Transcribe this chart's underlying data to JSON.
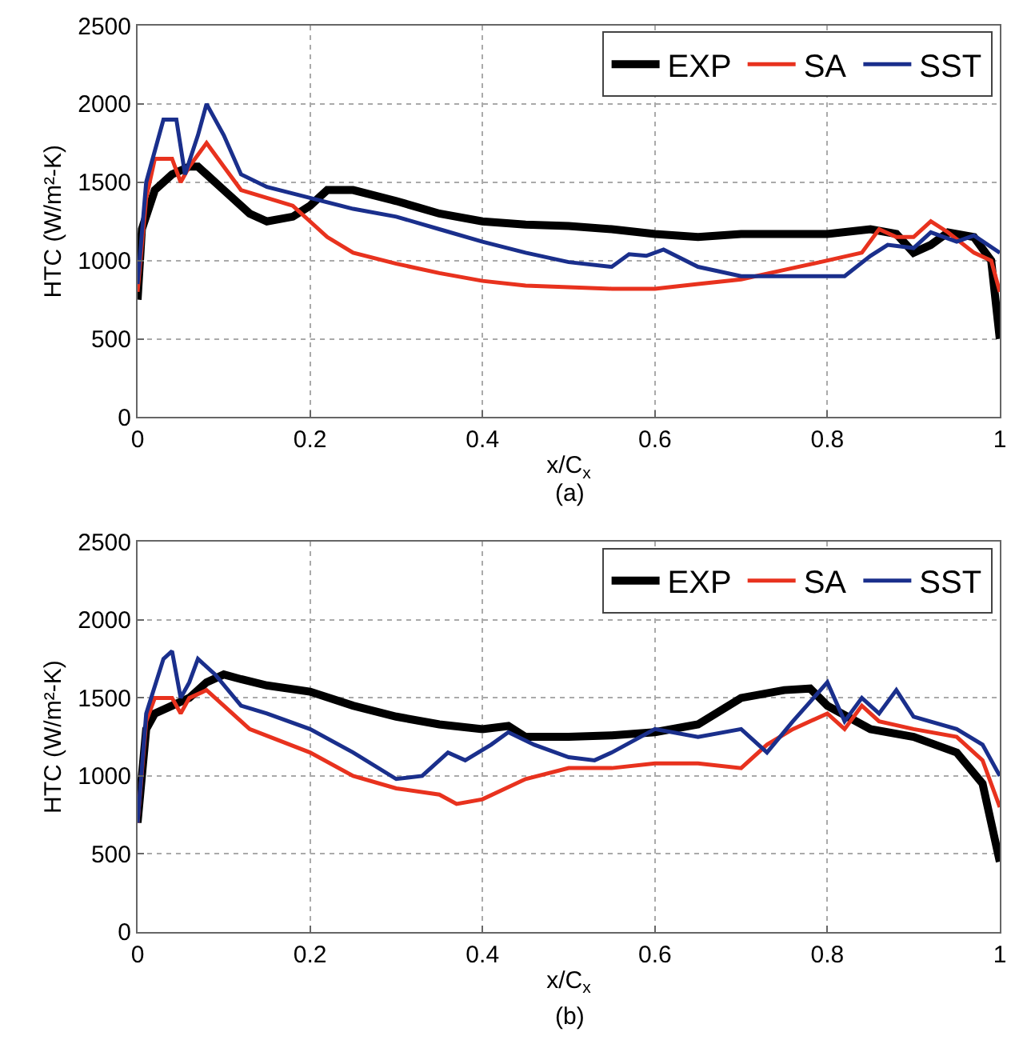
{
  "chart_data": [
    {
      "type": "line",
      "xlabel": "x/C$_{x}$",
      "ylabel": "HTC (W/m²-K)",
      "xlim": [
        0,
        1
      ],
      "xticks": [
        0,
        0.2,
        0.4,
        0.6,
        0.8,
        1
      ],
      "ylim": [
        0,
        2500
      ],
      "yticks": [
        0,
        500,
        1000,
        1500,
        2000,
        2500
      ],
      "grid": true,
      "legend": "top right",
      "annotations": [
        "(a)"
      ],
      "series": [
        {
          "name": "EXP",
          "color": "#000000",
          "x": [
            0,
            0.005,
            0.02,
            0.04,
            0.06,
            0.07,
            0.08,
            0.1,
            0.13,
            0.15,
            0.18,
            0.2,
            0.22,
            0.25,
            0.3,
            0.35,
            0.4,
            0.45,
            0.5,
            0.55,
            0.6,
            0.65,
            0.7,
            0.75,
            0.8,
            0.85,
            0.88,
            0.9,
            0.92,
            0.94,
            0.97,
            0.99,
            1.0
          ],
          "values": [
            750,
            1200,
            1450,
            1550,
            1600,
            1600,
            1550,
            1450,
            1300,
            1250,
            1280,
            1350,
            1450,
            1450,
            1380,
            1300,
            1250,
            1230,
            1220,
            1200,
            1170,
            1150,
            1170,
            1170,
            1170,
            1200,
            1170,
            1050,
            1100,
            1180,
            1150,
            1000,
            500
          ]
        },
        {
          "name": "SA",
          "color": "#e8321e",
          "x": [
            0,
            0.01,
            0.02,
            0.04,
            0.05,
            0.06,
            0.08,
            0.1,
            0.12,
            0.15,
            0.18,
            0.2,
            0.22,
            0.25,
            0.3,
            0.35,
            0.4,
            0.45,
            0.5,
            0.55,
            0.6,
            0.65,
            0.7,
            0.75,
            0.8,
            0.84,
            0.86,
            0.88,
            0.9,
            0.92,
            0.94,
            0.97,
            0.99,
            1.0
          ],
          "values": [
            800,
            1400,
            1650,
            1650,
            1500,
            1600,
            1750,
            1600,
            1450,
            1400,
            1350,
            1250,
            1150,
            1050,
            980,
            920,
            870,
            840,
            830,
            820,
            820,
            850,
            880,
            940,
            1000,
            1050,
            1200,
            1150,
            1150,
            1250,
            1180,
            1050,
            1000,
            800
          ]
        },
        {
          "name": "SST",
          "color": "#1a2f8c",
          "x": [
            0,
            0.01,
            0.03,
            0.045,
            0.055,
            0.07,
            0.08,
            0.1,
            0.12,
            0.15,
            0.2,
            0.25,
            0.3,
            0.35,
            0.4,
            0.45,
            0.5,
            0.55,
            0.57,
            0.59,
            0.61,
            0.65,
            0.7,
            0.75,
            0.8,
            0.82,
            0.85,
            0.87,
            0.9,
            0.92,
            0.95,
            0.97,
            1.0
          ],
          "values": [
            850,
            1500,
            1900,
            1900,
            1550,
            1800,
            2000,
            1800,
            1550,
            1470,
            1400,
            1330,
            1280,
            1200,
            1120,
            1050,
            990,
            960,
            1040,
            1030,
            1070,
            960,
            900,
            900,
            900,
            900,
            1030,
            1100,
            1080,
            1180,
            1120,
            1160,
            1050
          ]
        }
      ]
    },
    {
      "type": "line",
      "xlabel": "x/C$_{x}$",
      "ylabel": "HTC (W/m²-K)",
      "xlim": [
        0,
        1
      ],
      "xticks": [
        0,
        0.2,
        0.4,
        0.6,
        0.8,
        1
      ],
      "ylim": [
        0,
        2500
      ],
      "yticks": [
        0,
        500,
        1000,
        1500,
        2000,
        2500
      ],
      "grid": true,
      "legend": "top right",
      "annotations": [
        "(b)"
      ],
      "series": [
        {
          "name": "EXP",
          "color": "#000000",
          "x": [
            0,
            0.01,
            0.02,
            0.04,
            0.06,
            0.08,
            0.1,
            0.12,
            0.15,
            0.2,
            0.25,
            0.3,
            0.35,
            0.4,
            0.43,
            0.45,
            0.5,
            0.55,
            0.6,
            0.65,
            0.7,
            0.75,
            0.78,
            0.8,
            0.85,
            0.9,
            0.95,
            0.98,
            1.0
          ],
          "values": [
            700,
            1300,
            1400,
            1450,
            1500,
            1600,
            1650,
            1620,
            1580,
            1540,
            1450,
            1380,
            1330,
            1300,
            1320,
            1250,
            1250,
            1260,
            1280,
            1330,
            1500,
            1550,
            1560,
            1450,
            1300,
            1250,
            1150,
            950,
            450
          ]
        },
        {
          "name": "SA",
          "color": "#e8321e",
          "x": [
            0,
            0.01,
            0.02,
            0.04,
            0.05,
            0.06,
            0.08,
            0.1,
            0.13,
            0.2,
            0.25,
            0.3,
            0.35,
            0.37,
            0.4,
            0.45,
            0.5,
            0.55,
            0.6,
            0.65,
            0.7,
            0.73,
            0.76,
            0.8,
            0.82,
            0.84,
            0.86,
            0.9,
            0.95,
            0.98,
            1.0
          ],
          "values": [
            700,
            1350,
            1500,
            1500,
            1400,
            1500,
            1550,
            1450,
            1300,
            1150,
            1000,
            920,
            880,
            820,
            850,
            980,
            1050,
            1050,
            1080,
            1080,
            1050,
            1200,
            1300,
            1400,
            1300,
            1450,
            1350,
            1300,
            1250,
            1100,
            800
          ]
        },
        {
          "name": "SST",
          "color": "#1a2f8c",
          "x": [
            0,
            0.01,
            0.03,
            0.04,
            0.05,
            0.06,
            0.07,
            0.09,
            0.12,
            0.15,
            0.2,
            0.25,
            0.3,
            0.33,
            0.36,
            0.38,
            0.41,
            0.43,
            0.46,
            0.5,
            0.53,
            0.55,
            0.6,
            0.65,
            0.7,
            0.73,
            0.76,
            0.8,
            0.82,
            0.84,
            0.86,
            0.88,
            0.9,
            0.95,
            0.98,
            1.0
          ],
          "values": [
            700,
            1400,
            1750,
            1800,
            1500,
            1600,
            1750,
            1650,
            1450,
            1400,
            1300,
            1150,
            980,
            1000,
            1150,
            1100,
            1200,
            1280,
            1200,
            1120,
            1100,
            1150,
            1300,
            1250,
            1300,
            1150,
            1350,
            1600,
            1350,
            1500,
            1400,
            1550,
            1380,
            1300,
            1200,
            1000
          ]
        }
      ]
    }
  ]
}
